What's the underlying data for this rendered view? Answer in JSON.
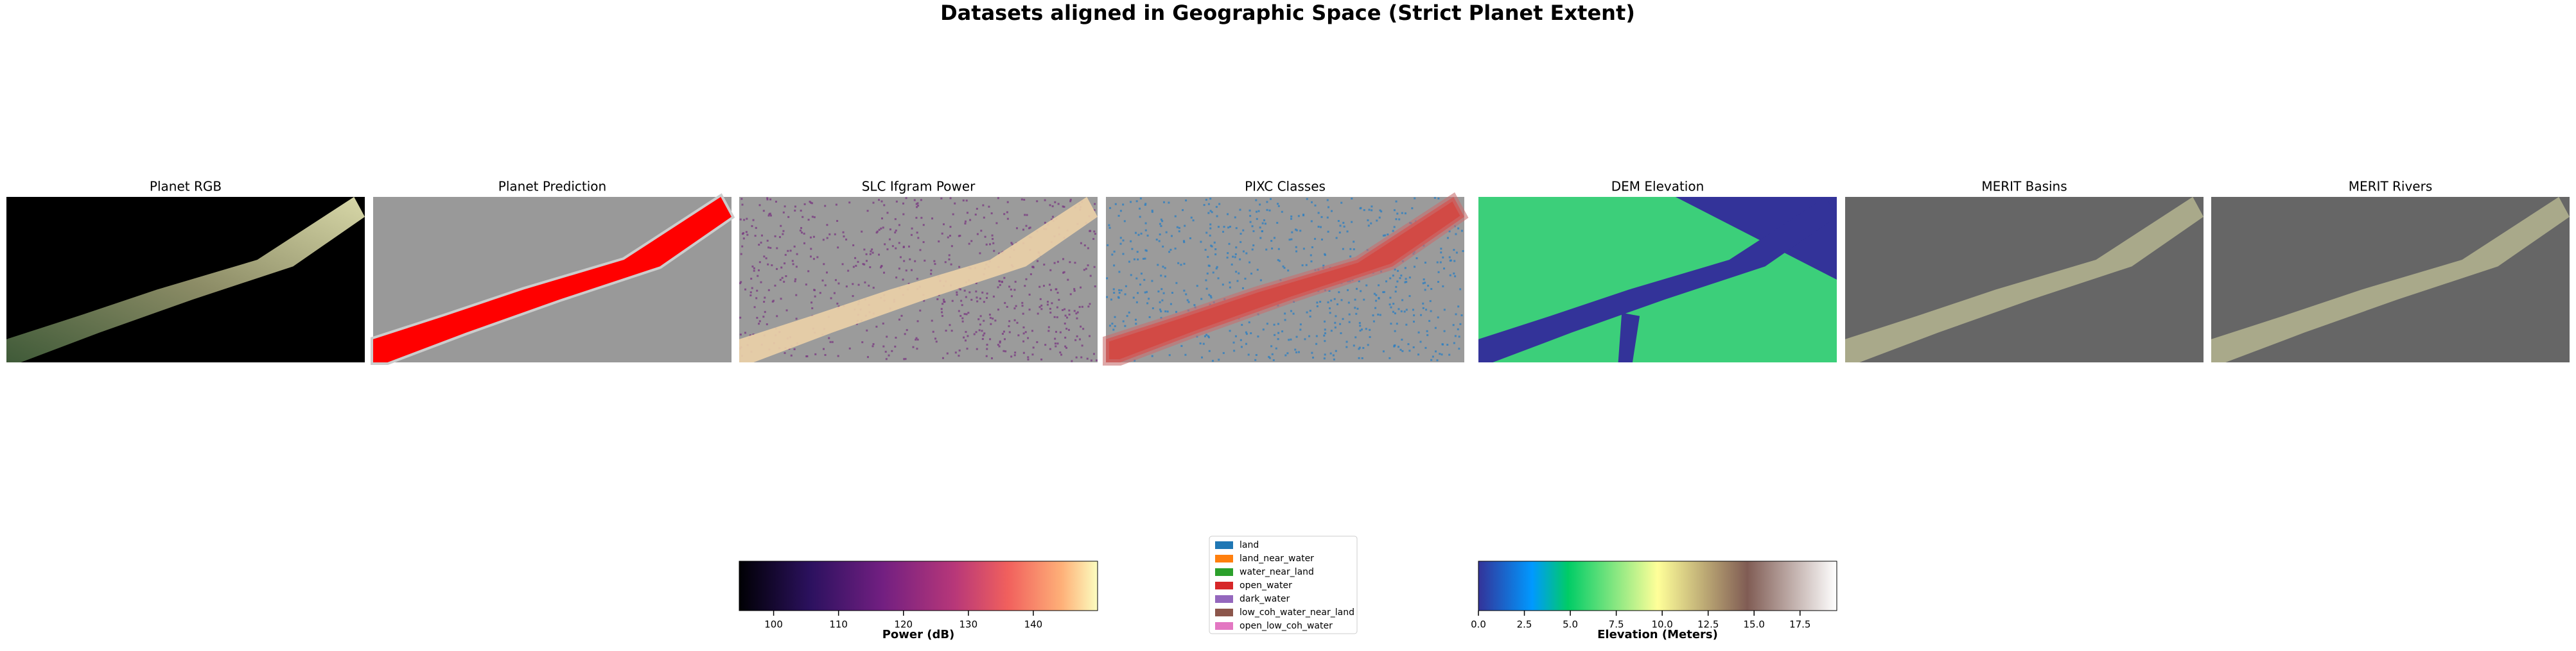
{
  "title": "Datasets aligned in Geographic Space (Strict Planet Extent)",
  "panels": [
    "Planet RGB",
    "Planet Prediction",
    "SLC Ifgram Power",
    "PIXC Classes",
    "DEM Elevation",
    "MERIT Basins",
    "MERIT Rivers"
  ],
  "power_colorbar": {
    "label": "Power (dB)",
    "xlim": [
      94.7,
      149.9
    ],
    "xticks": [
      100,
      110,
      120,
      130,
      140
    ]
  },
  "classes_legend": [
    {
      "name": "land",
      "color": "#1f77b4"
    },
    {
      "name": "land_near_water",
      "color": "#ff7f0e"
    },
    {
      "name": "water_near_land",
      "color": "#2ca02c"
    },
    {
      "name": "open_water",
      "color": "#d62728"
    },
    {
      "name": "dark_water",
      "color": "#9467bd"
    },
    {
      "name": "low_coh_water_near_land",
      "color": "#8c564b"
    },
    {
      "name": "open_low_coh_water",
      "color": "#e377c2"
    }
  ],
  "elevation_colorbar": {
    "label": "Elevation (Meters)",
    "xlim": [
      0,
      19.5
    ],
    "xticks": [
      {
        "value": 0,
        "label": "0.0"
      },
      2.5,
      {
        "value": 5,
        "label": "5.0"
      },
      7.5,
      {
        "value": 10,
        "label": "10.0"
      },
      12.5,
      {
        "value": 15,
        "label": "15.0"
      },
      17.5
    ]
  }
}
